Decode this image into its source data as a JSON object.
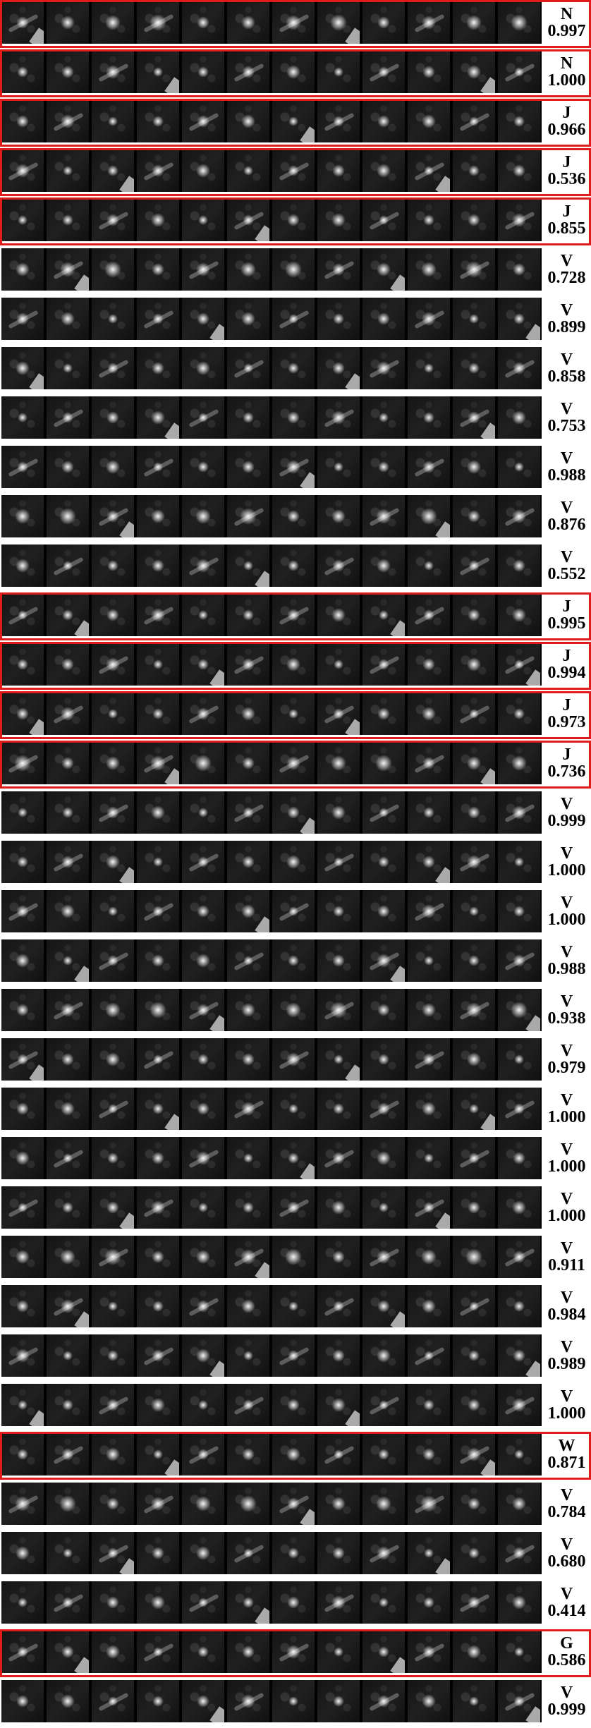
{
  "rows": [
    {
      "label": "N",
      "score": "0.997",
      "boxed": true
    },
    {
      "label": "N",
      "score": "1.000",
      "boxed": true
    },
    {
      "label": "J",
      "score": "0.966",
      "boxed": true
    },
    {
      "label": "J",
      "score": "0.536",
      "boxed": true
    },
    {
      "label": "J",
      "score": "0.855",
      "boxed": true
    },
    {
      "label": "V",
      "score": "0.728",
      "boxed": false
    },
    {
      "label": "V",
      "score": "0.899",
      "boxed": false
    },
    {
      "label": "V",
      "score": "0.858",
      "boxed": false
    },
    {
      "label": "V",
      "score": "0.753",
      "boxed": false
    },
    {
      "label": "V",
      "score": "0.988",
      "boxed": false
    },
    {
      "label": "V",
      "score": "0.876",
      "boxed": false
    },
    {
      "label": "V",
      "score": "0.552",
      "boxed": false
    },
    {
      "label": "J",
      "score": "0.995",
      "boxed": true
    },
    {
      "label": "J",
      "score": "0.994",
      "boxed": true
    },
    {
      "label": "J",
      "score": "0.973",
      "boxed": true
    },
    {
      "label": "J",
      "score": "0.736",
      "boxed": true
    },
    {
      "label": "V",
      "score": "0.999",
      "boxed": false
    },
    {
      "label": "V",
      "score": "1.000",
      "boxed": false
    },
    {
      "label": "V",
      "score": "1.000",
      "boxed": false
    },
    {
      "label": "V",
      "score": "0.988",
      "boxed": false
    },
    {
      "label": "V",
      "score": "0.938",
      "boxed": false
    },
    {
      "label": "V",
      "score": "0.979",
      "boxed": false
    },
    {
      "label": "V",
      "score": "1.000",
      "boxed": false
    },
    {
      "label": "V",
      "score": "1.000",
      "boxed": false
    },
    {
      "label": "V",
      "score": "1.000",
      "boxed": false
    },
    {
      "label": "V",
      "score": "0.911",
      "boxed": false
    },
    {
      "label": "V",
      "score": "0.984",
      "boxed": false
    },
    {
      "label": "V",
      "score": "0.989",
      "boxed": false
    },
    {
      "label": "V",
      "score": "1.000",
      "boxed": false
    },
    {
      "label": "W",
      "score": "0.871",
      "boxed": true
    },
    {
      "label": "V",
      "score": "0.784",
      "boxed": false
    },
    {
      "label": "V",
      "score": "0.680",
      "boxed": false
    },
    {
      "label": "V",
      "score": "0.414",
      "boxed": false
    },
    {
      "label": "G",
      "score": "0.586",
      "boxed": true
    },
    {
      "label": "V",
      "score": "0.999",
      "boxed": false
    }
  ],
  "frames_per_row": 12,
  "colors": {
    "highlight": "#e01b1b",
    "background": "#ffffff",
    "text": "#000000"
  }
}
